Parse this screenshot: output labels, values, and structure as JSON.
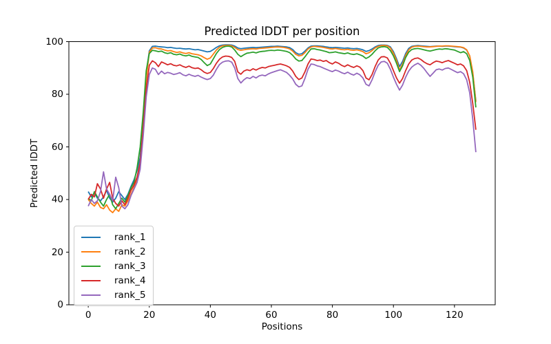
{
  "chart_data": {
    "type": "line",
    "title": "Predicted lDDT per position",
    "xlabel": "Positions",
    "ylabel": "Predicted lDDT",
    "xlim": [
      -6.35,
      133.35
    ],
    "ylim": [
      0,
      100
    ],
    "xticks": [
      0,
      20,
      40,
      60,
      80,
      100,
      120
    ],
    "yticks": [
      0,
      20,
      40,
      60,
      80,
      100
    ],
    "grid": false,
    "legend_position": "lower left",
    "x": {
      "start": 0,
      "step": 1,
      "count": 128
    },
    "series": [
      {
        "name": "rank_1",
        "color": "#1f77b4",
        "values": [
          43,
          41,
          42.5,
          40.5,
          39.5,
          41,
          43.5,
          40.5,
          39,
          40.5,
          43,
          41.5,
          40,
          42,
          45,
          47.5,
          51,
          56,
          70,
          88,
          96.5,
          98.2,
          98.3,
          98.1,
          98,
          97.9,
          97.7,
          97.8,
          97.6,
          97.4,
          97.5,
          97.3,
          97.2,
          97.3,
          97.1,
          96.9,
          97,
          96.7,
          96.4,
          96.1,
          96.3,
          97,
          97.8,
          98.4,
          98.7,
          98.8,
          98.8,
          98.7,
          98.3,
          97.6,
          97.3,
          97.5,
          97.6,
          97.7,
          97.8,
          97.7,
          97.8,
          97.9,
          98,
          98.1,
          98.2,
          98.2,
          98.3,
          98.2,
          98.1,
          98,
          97.7,
          97,
          95.8,
          95.2,
          95.4,
          96.4,
          97.6,
          98.3,
          98.4,
          98.4,
          98.3,
          98.2,
          98,
          97.8,
          97.7,
          97.8,
          97.7,
          97.6,
          97.5,
          97.6,
          97.4,
          97.3,
          97.4,
          97.2,
          96.9,
          96.3,
          96.6,
          97.2,
          98,
          98.5,
          98.7,
          98.7,
          98.6,
          98,
          96.2,
          93.5,
          90.5,
          92.5,
          95.5,
          97.4,
          98.2,
          98.4,
          98.5,
          98.4,
          98.3,
          98.2,
          98.1,
          98.2,
          98.3,
          98.3,
          98.2,
          98.3,
          98.3,
          98.2,
          98.1,
          98,
          97.9,
          97.6,
          96.8,
          94.5,
          88,
          77.5
        ]
      },
      {
        "name": "rank_2",
        "color": "#ff7f0e",
        "values": [
          40,
          38.5,
          37.5,
          39,
          37,
          36.5,
          38,
          36,
          35,
          36.5,
          35.5,
          38,
          37.5,
          39.5,
          42,
          44.5,
          47.5,
          53,
          68,
          86,
          96,
          97.6,
          97.7,
          97.3,
          97.2,
          96.8,
          96.5,
          96.6,
          96.2,
          95.9,
          96.1,
          95.7,
          95.5,
          95.8,
          95.4,
          95.2,
          95,
          94.6,
          93.9,
          93.3,
          93.8,
          95.3,
          96.8,
          97.9,
          98.4,
          98.5,
          98.6,
          98.4,
          97.8,
          97,
          96.7,
          96.9,
          97.1,
          97.2,
          97.3,
          97.2,
          97.4,
          97.5,
          97.6,
          97.7,
          97.8,
          97.9,
          98,
          97.9,
          97.8,
          97.6,
          97.2,
          96.4,
          95.2,
          94.6,
          94.8,
          95.8,
          97.2,
          98,
          98.2,
          98.1,
          98,
          97.8,
          97.6,
          97.3,
          97.2,
          97.4,
          97.2,
          97,
          96.9,
          97.1,
          96.8,
          96.7,
          96.9,
          96.6,
          96.2,
          95.4,
          95.8,
          96.6,
          97.6,
          98.2,
          98.5,
          98.5,
          98.4,
          97.6,
          95.6,
          92.8,
          89.2,
          91.5,
          94.8,
          96.9,
          97.9,
          98.2,
          98.3,
          98.2,
          98.1,
          98,
          98,
          98.1,
          98.2,
          98.3,
          98.3,
          98.4,
          98.4,
          98.3,
          98.2,
          98.1,
          98,
          97.7,
          96.9,
          94.6,
          88.5,
          77
        ]
      },
      {
        "name": "rank_3",
        "color": "#2ca02c",
        "values": [
          40.5,
          39.5,
          43,
          41,
          39,
          37.5,
          40,
          42,
          38,
          36.5,
          38.5,
          40.5,
          39,
          41.5,
          44.5,
          46.5,
          52,
          60,
          73,
          89,
          95.5,
          96.7,
          96.5,
          96.2,
          96.4,
          95.8,
          95.5,
          95.8,
          95.2,
          95,
          95.3,
          94.8,
          94.6,
          94.9,
          94.4,
          94.2,
          94,
          93.2,
          92,
          90.9,
          91.5,
          93.5,
          95.5,
          97,
          97.8,
          98.2,
          98.3,
          98,
          96.8,
          95.2,
          94.3,
          95,
          95.6,
          95.8,
          96,
          95.7,
          96.1,
          96.3,
          96.4,
          96.6,
          96.7,
          96.6,
          96.8,
          96.7,
          96.5,
          96.3,
          95.8,
          94.8,
          93.4,
          92.6,
          92.8,
          94.2,
          95.8,
          97.2,
          97.3,
          97,
          96.8,
          96.5,
          96.2,
          95.8,
          95.9,
          96.1,
          95.8,
          95.6,
          95.4,
          95.7,
          95.3,
          95.1,
          95.4,
          95,
          94.5,
          93.6,
          94.2,
          95.2,
          96.5,
          97.6,
          98,
          98.1,
          97.8,
          96.6,
          94.6,
          91.8,
          88.6,
          90.8,
          94,
          96,
          97,
          97.3,
          97.4,
          97.2,
          96.9,
          96.6,
          96.4,
          96.7,
          97,
          97.2,
          97.1,
          97.3,
          97.2,
          97,
          96.8,
          96.3,
          95.8,
          96.2,
          95.4,
          92.8,
          86.5,
          75
        ]
      },
      {
        "name": "rank_4",
        "color": "#d62728",
        "values": [
          40,
          42,
          41,
          46,
          44,
          40.5,
          44,
          46.5,
          40.5,
          38.5,
          37.5,
          39.5,
          38,
          40.5,
          43.5,
          45.5,
          48.5,
          54,
          67,
          82,
          91,
          92.7,
          92,
          90.5,
          92.3,
          91.8,
          91.2,
          91.6,
          91,
          90.8,
          91.2,
          90.6,
          90.2,
          90.7,
          90.1,
          89.8,
          90,
          89.3,
          88.4,
          87.9,
          88.3,
          89.8,
          91.8,
          93.3,
          94.2,
          94.5,
          94.4,
          94,
          92.5,
          88.5,
          87.6,
          88.8,
          89.3,
          89,
          89.7,
          89.2,
          89.8,
          90.2,
          90,
          90.5,
          90.8,
          91,
          91.3,
          91.5,
          91.2,
          90.8,
          90.2,
          88.8,
          86.8,
          85.6,
          86.2,
          88.5,
          91.5,
          93.4,
          93.2,
          92.8,
          93,
          92.5,
          92.8,
          92,
          91.5,
          92.3,
          91.8,
          91,
          90.5,
          91.2,
          90.6,
          90.2,
          90.8,
          90.3,
          89,
          86.2,
          85.5,
          87.5,
          90.5,
          93,
          94.2,
          94.3,
          93.8,
          91.8,
          89,
          86.2,
          84.2,
          86,
          89,
          91.5,
          93,
          93.6,
          93.8,
          93.2,
          92.3,
          91.6,
          91.2,
          92,
          92.6,
          92.4,
          92,
          92.5,
          92.8,
          92.3,
          91.8,
          91.2,
          91.5,
          90.8,
          89,
          84.5,
          76.5,
          66.5
        ]
      },
      {
        "name": "rank_5",
        "color": "#9467bd",
        "values": [
          37.5,
          40,
          38.5,
          39.5,
          43,
          50.5,
          44,
          42,
          39.5,
          48.5,
          44.5,
          37.5,
          36.5,
          38,
          41.5,
          44,
          46.5,
          51.5,
          64,
          79,
          87.5,
          90,
          89.5,
          87.5,
          88.8,
          87.8,
          88.3,
          88,
          87.5,
          87.8,
          88.2,
          87.4,
          87,
          87.6,
          87.1,
          86.8,
          87.2,
          86.5,
          86,
          85.6,
          86,
          87.3,
          89.5,
          91.3,
          92.2,
          92.6,
          92.7,
          92.2,
          90,
          86,
          84.3,
          85.5,
          86.3,
          86,
          86.8,
          86.2,
          87,
          87.3,
          87,
          87.7,
          88.2,
          88.6,
          89,
          89.3,
          88.8,
          88.3,
          87.2,
          85.8,
          83.8,
          82.8,
          83.2,
          86,
          89.5,
          91.5,
          91.3,
          90.8,
          90.5,
          90,
          89.5,
          89,
          88.6,
          89.2,
          88.8,
          88.2,
          87.8,
          88.4,
          87.7,
          87.3,
          88,
          87.4,
          86.2,
          83.8,
          83.2,
          85.5,
          88.5,
          91,
          92.3,
          92.5,
          91.8,
          89.5,
          86.5,
          83.8,
          81.6,
          83.5,
          86.5,
          88.8,
          90.3,
          91.2,
          91.8,
          91,
          89.8,
          88.2,
          86.8,
          88,
          89.3,
          89.6,
          89.2,
          89.8,
          90,
          89.4,
          88.8,
          88.2,
          88.6,
          87.8,
          85.5,
          80.5,
          70.5,
          58
        ]
      }
    ]
  }
}
